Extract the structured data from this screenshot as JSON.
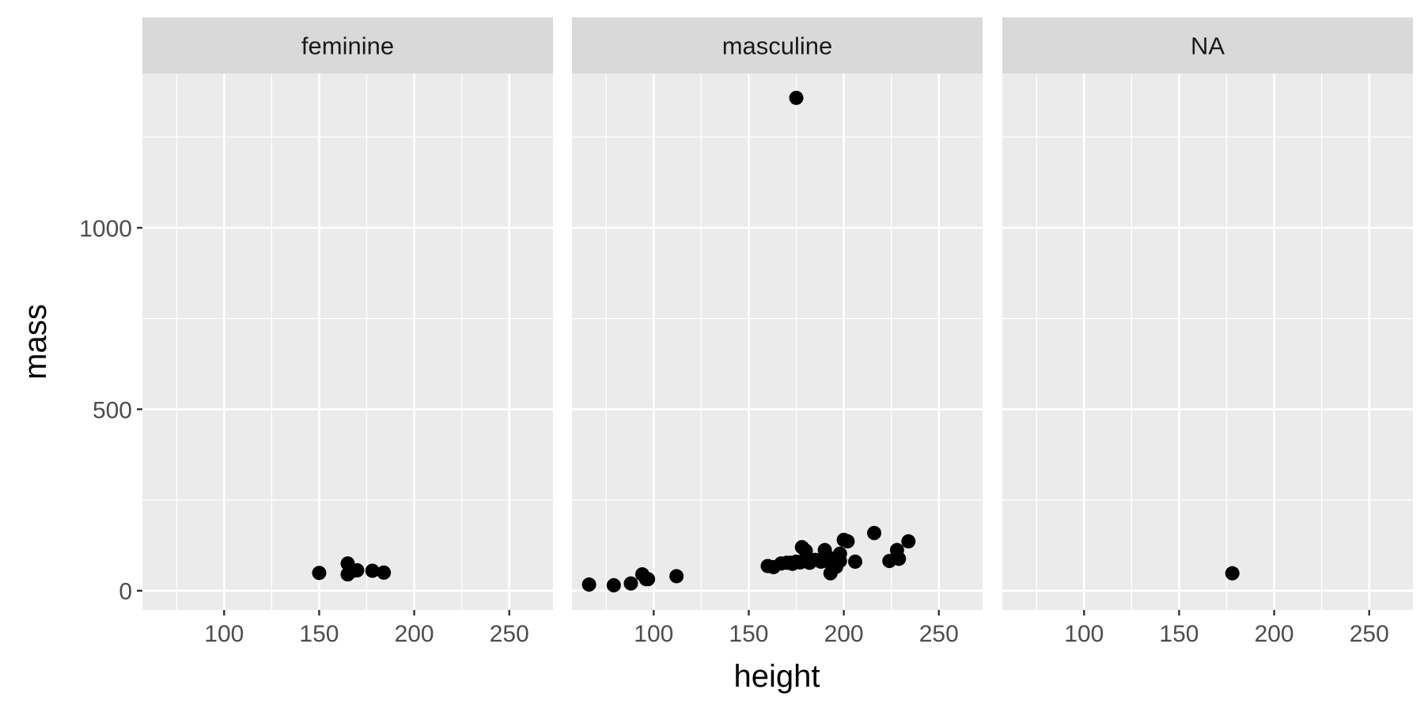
{
  "chart_data": {
    "type": "scatter",
    "facet_by": "gender",
    "xlabel": "height",
    "ylabel": "mass",
    "xlim": [
      57,
      273
    ],
    "ylim": [
      -53,
      1425
    ],
    "x_ticks": [
      100,
      150,
      200,
      250
    ],
    "y_ticks": [
      0,
      500,
      1000
    ],
    "grid": true,
    "colors": {
      "panel_bg": "#ebebeb",
      "strip_bg": "#d9d9d9",
      "grid": "#ffffff",
      "point": "#000000",
      "tick_text": "#4d4d4d"
    },
    "panels": [
      {
        "label": "feminine",
        "points": [
          {
            "x": 150,
            "y": 49
          },
          {
            "x": 165,
            "y": 75
          },
          {
            "x": 165,
            "y": 45
          },
          {
            "x": 168,
            "y": 55
          },
          {
            "x": 170,
            "y": 56.2
          },
          {
            "x": 178,
            "y": 55
          },
          {
            "x": 184,
            "y": 50
          }
        ]
      },
      {
        "label": "masculine",
        "points": [
          {
            "x": 66,
            "y": 17
          },
          {
            "x": 79,
            "y": 15
          },
          {
            "x": 88,
            "y": 20
          },
          {
            "x": 94,
            "y": 45
          },
          {
            "x": 96,
            "y": 32
          },
          {
            "x": 97,
            "y": 32
          },
          {
            "x": 112,
            "y": 40
          },
          {
            "x": 175,
            "y": 1358
          },
          {
            "x": 160,
            "y": 68
          },
          {
            "x": 163,
            "y": 65
          },
          {
            "x": 167,
            "y": 75
          },
          {
            "x": 170,
            "y": 77
          },
          {
            "x": 172,
            "y": 77
          },
          {
            "x": 173,
            "y": 74
          },
          {
            "x": 175,
            "y": 80
          },
          {
            "x": 177,
            "y": 78
          },
          {
            "x": 178,
            "y": 120
          },
          {
            "x": 180,
            "y": 90
          },
          {
            "x": 180,
            "y": 110
          },
          {
            "x": 182,
            "y": 77
          },
          {
            "x": 183,
            "y": 84
          },
          {
            "x": 185,
            "y": 85
          },
          {
            "x": 188,
            "y": 84
          },
          {
            "x": 188,
            "y": 80
          },
          {
            "x": 190,
            "y": 112
          },
          {
            "x": 191,
            "y": 82
          },
          {
            "x": 193,
            "y": 48
          },
          {
            "x": 193,
            "y": 89
          },
          {
            "x": 196,
            "y": 66
          },
          {
            "x": 198,
            "y": 82
          },
          {
            "x": 198,
            "y": 102
          },
          {
            "x": 200,
            "y": 140
          },
          {
            "x": 202,
            "y": 136
          },
          {
            "x": 206,
            "y": 80
          },
          {
            "x": 216,
            "y": 159
          },
          {
            "x": 224,
            "y": 82
          },
          {
            "x": 228,
            "y": 112
          },
          {
            "x": 229,
            "y": 88
          },
          {
            "x": 234,
            "y": 136
          }
        ]
      },
      {
        "label": "NA",
        "points": [
          {
            "x": 178,
            "y": 48
          }
        ]
      }
    ]
  }
}
